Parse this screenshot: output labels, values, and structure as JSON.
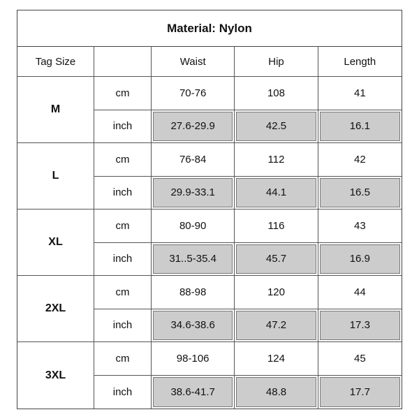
{
  "title": "Material: Nylon",
  "headers": {
    "tag_size": "Tag Size",
    "unit": "",
    "waist": "Waist",
    "hip": "Hip",
    "length": "Length"
  },
  "rows": [
    {
      "size": "M",
      "cm": {
        "unit": "cm",
        "waist": "70-76",
        "hip": "108",
        "length": "41"
      },
      "inch": {
        "unit": "inch",
        "waist": "27.6-29.9",
        "hip": "42.5",
        "length": "16.1"
      }
    },
    {
      "size": "L",
      "cm": {
        "unit": "cm",
        "waist": "76-84",
        "hip": "112",
        "length": "42"
      },
      "inch": {
        "unit": "inch",
        "waist": "29.9-33.1",
        "hip": "44.1",
        "length": "16.5"
      }
    },
    {
      "size": "XL",
      "cm": {
        "unit": "cm",
        "waist": "80-90",
        "hip": "116",
        "length": "43"
      },
      "inch": {
        "unit": "inch",
        "waist": "31..5-35.4",
        "hip": "45.7",
        "length": "16.9"
      }
    },
    {
      "size": "2XL",
      "cm": {
        "unit": "cm",
        "waist": "88-98",
        "hip": "120",
        "length": "44"
      },
      "inch": {
        "unit": "inch",
        "waist": "34.6-38.6",
        "hip": "47.2",
        "length": "17.3"
      }
    },
    {
      "size": "3XL",
      "cm": {
        "unit": "cm",
        "waist": "98-106",
        "hip": "124",
        "length": "45"
      },
      "inch": {
        "unit": "inch",
        "waist": "38.6-41.7",
        "hip": "48.8",
        "length": "17.7"
      }
    }
  ],
  "colors": {
    "shade": "#cccccc",
    "border": "#555555"
  }
}
